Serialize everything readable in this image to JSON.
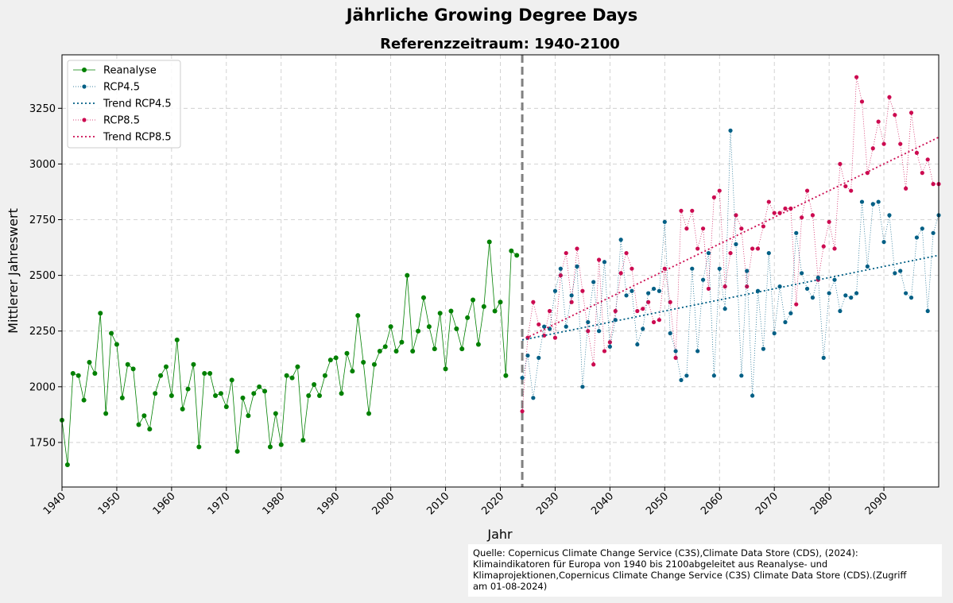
{
  "chart_data": {
    "type": "line",
    "suptitle": "Jährliche Growing Degree Days",
    "title": "Referenzzeitraum: 1940-2100",
    "xlabel": "Jahr",
    "ylabel": "Mittlerer Jahreswert",
    "xlim": [
      1940,
      2100
    ],
    "ylim": [
      1550,
      3490
    ],
    "xticks": [
      1940,
      1950,
      1960,
      1970,
      1980,
      1990,
      2000,
      2010,
      2020,
      2030,
      2040,
      2050,
      2060,
      2070,
      2080,
      2090
    ],
    "yticks": [
      1750,
      2000,
      2250,
      2500,
      2750,
      3000,
      3250
    ],
    "grid": true,
    "legend_position": "top-left",
    "vline": {
      "x": 2024,
      "color": "#808080",
      "style": "dashed"
    },
    "colors": {
      "reanalysis": "#008000",
      "rcp45": "#005f85",
      "rcp85": "#cc0a50",
      "vline": "#808080",
      "grid": "#c8c8c8"
    },
    "series": [
      {
        "name": "Reanalyse",
        "style": "solid-line-circle",
        "color": "#008000",
        "x": [
          1940,
          1941,
          1942,
          1943,
          1944,
          1945,
          1946,
          1947,
          1948,
          1949,
          1950,
          1951,
          1952,
          1953,
          1954,
          1955,
          1956,
          1957,
          1958,
          1959,
          1960,
          1961,
          1962,
          1963,
          1964,
          1965,
          1966,
          1967,
          1968,
          1969,
          1970,
          1971,
          1972,
          1973,
          1974,
          1975,
          1976,
          1977,
          1978,
          1979,
          1980,
          1981,
          1982,
          1983,
          1984,
          1985,
          1986,
          1987,
          1988,
          1989,
          1990,
          1991,
          1992,
          1993,
          1994,
          1995,
          1996,
          1997,
          1998,
          1999,
          2000,
          2001,
          2002,
          2003,
          2004,
          2005,
          2006,
          2007,
          2008,
          2009,
          2010,
          2011,
          2012,
          2013,
          2014,
          2015,
          2016,
          2017,
          2018,
          2019,
          2020,
          2021,
          2022,
          2023
        ],
        "values": [
          1850,
          1650,
          2060,
          2050,
          1940,
          2110,
          2060,
          2330,
          1880,
          2240,
          2190,
          1950,
          2100,
          2080,
          1830,
          1870,
          1810,
          1970,
          2050,
          2090,
          1960,
          2210,
          1900,
          1990,
          2100,
          1730,
          2060,
          2060,
          1960,
          1970,
          1910,
          2030,
          1710,
          1950,
          1870,
          1970,
          2000,
          1980,
          1730,
          1880,
          1740,
          2050,
          2040,
          2090,
          1760,
          1960,
          2010,
          1960,
          2050,
          2120,
          2130,
          1970,
          2150,
          2070,
          2320,
          2110,
          1880,
          2100,
          2160,
          2180,
          2270,
          2160,
          2200,
          2500,
          2160,
          2250,
          2400,
          2270,
          2170,
          2330,
          2080,
          2340,
          2260,
          2170,
          2310,
          2390,
          2190,
          2360,
          2650,
          2340,
          2380,
          2050,
          2610,
          2590
        ]
      },
      {
        "name": "RCP4.5",
        "style": "dotted-line-circle",
        "color": "#005f85",
        "x": [
          2024,
          2025,
          2026,
          2027,
          2028,
          2029,
          2030,
          2031,
          2032,
          2033,
          2034,
          2035,
          2036,
          2037,
          2038,
          2039,
          2040,
          2041,
          2042,
          2043,
          2044,
          2045,
          2046,
          2047,
          2048,
          2049,
          2050,
          2051,
          2052,
          2053,
          2054,
          2055,
          2056,
          2057,
          2058,
          2059,
          2060,
          2061,
          2062,
          2063,
          2064,
          2065,
          2066,
          2067,
          2068,
          2069,
          2070,
          2071,
          2072,
          2073,
          2074,
          2075,
          2076,
          2077,
          2078,
          2079,
          2080,
          2081,
          2082,
          2083,
          2084,
          2085,
          2086,
          2087,
          2088,
          2089,
          2090,
          2091,
          2092,
          2093,
          2094,
          2095,
          2096,
          2097,
          2098,
          2099,
          2100
        ],
        "values": [
          2040,
          2140,
          1950,
          2130,
          2270,
          2260,
          2430,
          2530,
          2270,
          2410,
          2540,
          2000,
          2290,
          2470,
          2250,
          2560,
          2180,
          2300,
          2660,
          2410,
          2430,
          2190,
          2260,
          2420,
          2440,
          2430,
          2740,
          2240,
          2160,
          2030,
          2050,
          2530,
          2160,
          2480,
          2600,
          2050,
          2530,
          2350,
          3150,
          2640,
          2050,
          2520,
          1960,
          2430,
          2170,
          2600,
          2240,
          2450,
          2290,
          2330,
          2690,
          2510,
          2440,
          2400,
          2490,
          2130,
          2420,
          2480,
          2340,
          2410,
          2400,
          2420,
          2830,
          2540,
          2820,
          2830,
          2650,
          2770,
          2510,
          2520,
          2420,
          2400,
          2670,
          2710,
          2340,
          2690,
          2770
        ]
      },
      {
        "name": "Trend RCP4.5",
        "style": "dotted-line",
        "color": "#005f85",
        "x": [
          2024,
          2100
        ],
        "values": [
          2210,
          2590
        ]
      },
      {
        "name": "RCP8.5",
        "style": "dotted-line-circle",
        "color": "#cc0a50",
        "x": [
          2024,
          2025,
          2026,
          2027,
          2028,
          2029,
          2030,
          2031,
          2032,
          2033,
          2034,
          2035,
          2036,
          2037,
          2038,
          2039,
          2040,
          2041,
          2042,
          2043,
          2044,
          2045,
          2046,
          2047,
          2048,
          2049,
          2050,
          2051,
          2052,
          2053,
          2054,
          2055,
          2056,
          2057,
          2058,
          2059,
          2060,
          2061,
          2062,
          2063,
          2064,
          2065,
          2066,
          2067,
          2068,
          2069,
          2070,
          2071,
          2072,
          2073,
          2074,
          2075,
          2076,
          2077,
          2078,
          2079,
          2080,
          2081,
          2082,
          2083,
          2084,
          2085,
          2086,
          2087,
          2088,
          2089,
          2090,
          2091,
          2092,
          2093,
          2094,
          2095,
          2096,
          2097,
          2098,
          2099,
          2100
        ],
        "values": [
          1890,
          2220,
          2380,
          2280,
          2230,
          2340,
          2220,
          2500,
          2600,
          2380,
          2620,
          2430,
          2250,
          2100,
          2570,
          2160,
          2200,
          2340,
          2510,
          2600,
          2530,
          2340,
          2350,
          2380,
          2290,
          2300,
          2530,
          2380,
          2130,
          2790,
          2710,
          2790,
          2620,
          2710,
          2440,
          2850,
          2880,
          2450,
          2600,
          2770,
          2710,
          2450,
          2620,
          2620,
          2720,
          2830,
          2780,
          2780,
          2800,
          2800,
          2370,
          2760,
          2880,
          2770,
          2480,
          2630,
          2740,
          2620,
          3000,
          2900,
          2880,
          3390,
          3280,
          2960,
          3070,
          3190,
          3090,
          3300,
          3220,
          3090,
          2890,
          3230,
          3050,
          2960,
          3020,
          2910,
          2910
        ]
      },
      {
        "name": "Trend RCP8.5",
        "style": "dotted-line",
        "color": "#cc0a50",
        "x": [
          2024,
          2100
        ],
        "values": [
          2210,
          3120
        ]
      }
    ]
  },
  "source": {
    "lines": [
      "Quelle: Copernicus Climate Change Service (C3S),Climate Data Store (CDS), (2024):",
      "Klimaindikatoren für Europa von 1940 bis 2100abgeleitet aus Reanalyse- und",
      "Klimaprojektionen,Copernicus Climate Change Service (C3S) Climate Data Store (CDS).(Zugriff",
      "am 01-08-2024)"
    ]
  }
}
